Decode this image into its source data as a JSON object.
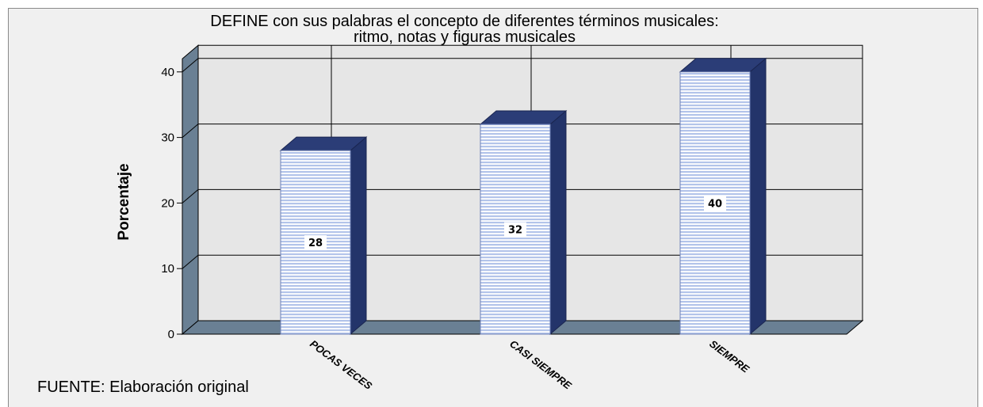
{
  "source_note": "FUENTE: Elaboración original",
  "chart_data": {
    "type": "bar",
    "title_lines": [
      "DEFINE con sus palabras el concepto de diferentes términos musicales:",
      "ritmo, notas y figuras musicales"
    ],
    "categories": [
      "POCAS VECES",
      "CASI SIEMPRE",
      "SIEMPRE"
    ],
    "values": [
      28,
      32,
      40
    ],
    "data_labels": [
      "28",
      "32",
      "40"
    ],
    "ylabel": "Porcentaje",
    "xlabel": "",
    "yticks": [
      0,
      10,
      20,
      30,
      40
    ],
    "ylim": [
      0,
      42
    ],
    "grid": true,
    "colors": {
      "bar_face": "#b8c8ec",
      "bar_stripe": "#ffffff",
      "bar_side": "#23346a",
      "bar_top": "#2b3d77",
      "wall": "#e6e6e6",
      "wall_side": "#6a8094",
      "floor": "#6a8094",
      "grid": "#000000"
    }
  }
}
